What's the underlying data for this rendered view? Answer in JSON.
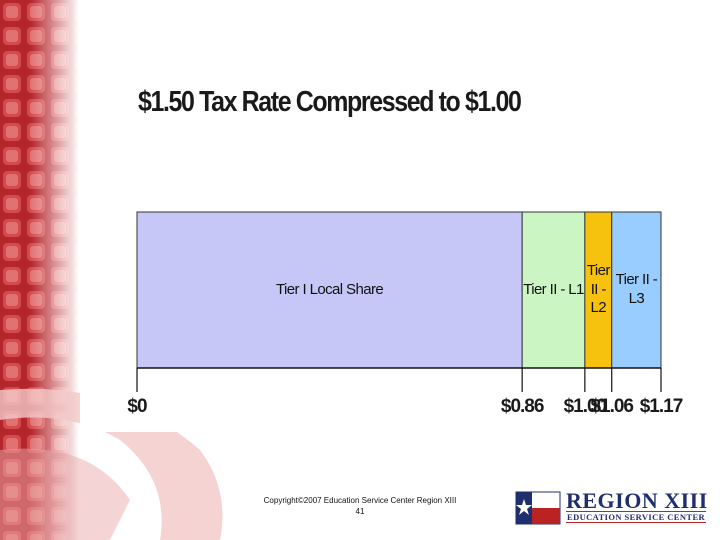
{
  "chart_data": {
    "type": "bar",
    "orientation": "horizontal",
    "stacked": true,
    "title": "$1.50 Tax Rate Compressed to $1.00",
    "series": [
      {
        "name": "Tier I Local Share",
        "color": "#c6c6f7",
        "values": [
          0.86
        ]
      },
      {
        "name": "Tier II - L1",
        "color": "#ccf5c4",
        "values": [
          0.14
        ]
      },
      {
        "name": "Tier II - L2",
        "color": "#f7c20e",
        "values": [
          0.06
        ]
      },
      {
        "name": "Tier II - L3",
        "color": "#99ccff",
        "values": [
          0.11
        ]
      }
    ],
    "xlim": [
      0,
      1.17
    ],
    "xticks": [
      {
        "value": 0,
        "label": "$0"
      },
      {
        "value": 0.86,
        "label": "$0.86"
      },
      {
        "value": 1.0,
        "label": "$1.00"
      },
      {
        "value": 1.06,
        "label": "$1.06"
      },
      {
        "value": 1.17,
        "label": "$1.17"
      }
    ]
  },
  "footer": {
    "copyright": "Copyright©2007 Education Service Center Region XIII",
    "page": "41"
  },
  "logo": {
    "name": "REGION XIII",
    "subtitle": "EDUCATION SERVICE CENTER"
  }
}
